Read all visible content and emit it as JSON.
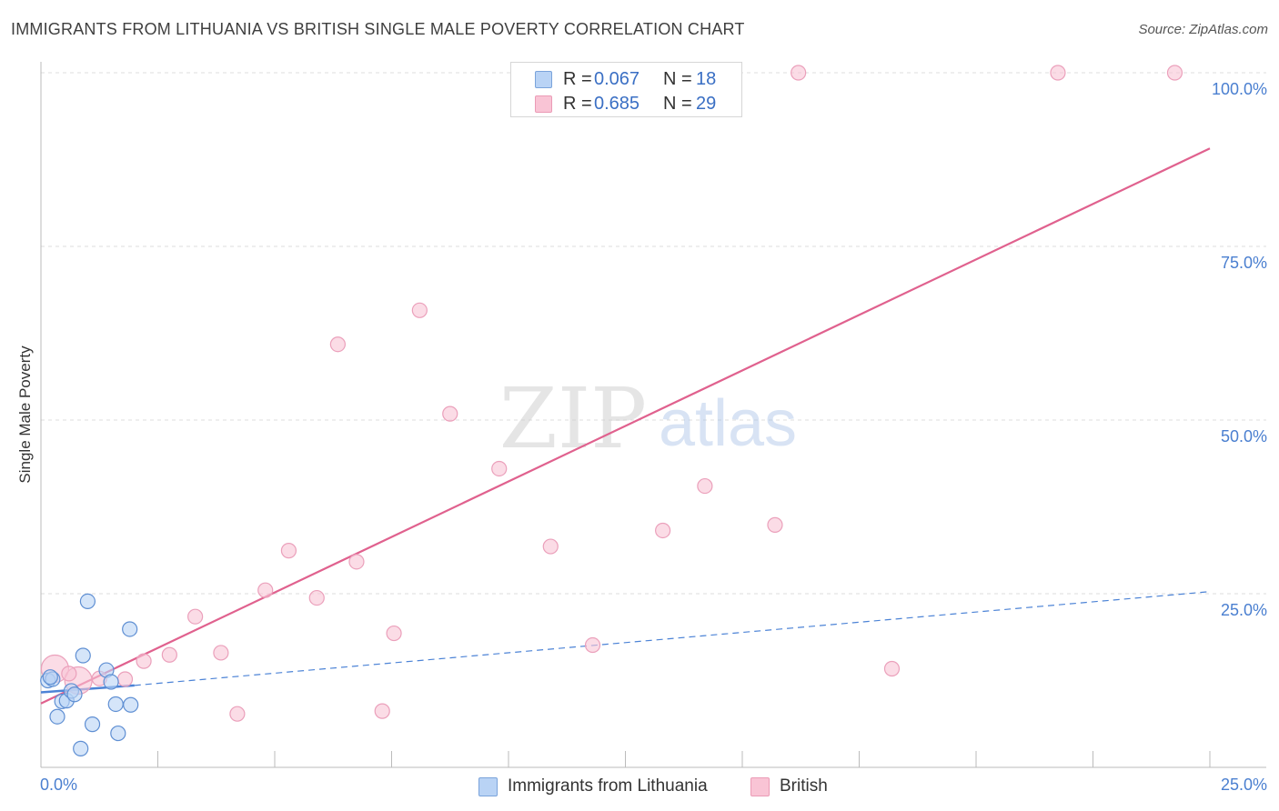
{
  "title": "IMMIGRANTS FROM LITHUANIA VS BRITISH SINGLE MALE POVERTY CORRELATION CHART",
  "source": "Source: ZipAtlas.com",
  "watermark": {
    "zip": "ZIP",
    "atlas": "atlas"
  },
  "colors": {
    "blue": "#4c83d6",
    "blue_fill": "#b9d3f5",
    "pink": "#e0618e",
    "pink_fill": "#f9c4d5",
    "tick_text": "#4a7fd0",
    "grid": "#dddddd"
  },
  "stats_legend": [
    {
      "series": "lithuania",
      "r_label": "R =",
      "r_value": "0.067",
      "n_label": "N =",
      "n_value": "18"
    },
    {
      "series": "british",
      "r_label": "R =",
      "r_value": "0.685",
      "n_label": "N =",
      "n_value": "29"
    }
  ],
  "chart_data": {
    "type": "scatter",
    "title": "IMMIGRANTS FROM LITHUANIA VS BRITISH SINGLE MALE POVERTY CORRELATION CHART",
    "xlabel": "",
    "ylabel": "Single Male Poverty",
    "xlim": [
      0,
      25
    ],
    "ylim": [
      0,
      100
    ],
    "x_tick_labels": [
      "0.0%",
      "25.0%"
    ],
    "y_ticks": [
      25,
      50,
      75,
      100
    ],
    "y_tick_labels": [
      "25.0%",
      "50.0%",
      "75.0%",
      "100.0%"
    ],
    "grid": true,
    "legend_position": "top-center",
    "series": [
      {
        "name": "Immigrants from Lithuania",
        "key": "lithuania",
        "points": [
          {
            "x": 0.15,
            "y": 12.5
          },
          {
            "x": 0.25,
            "y": 12.7
          },
          {
            "x": 0.35,
            "y": 7.3
          },
          {
            "x": 0.45,
            "y": 9.5
          },
          {
            "x": 0.55,
            "y": 9.6
          },
          {
            "x": 0.65,
            "y": 11.0
          },
          {
            "x": 0.72,
            "y": 10.5
          },
          {
            "x": 0.85,
            "y": 2.7
          },
          {
            "x": 0.9,
            "y": 16.1
          },
          {
            "x": 1.0,
            "y": 23.9
          },
          {
            "x": 1.1,
            "y": 6.2
          },
          {
            "x": 1.4,
            "y": 14.0
          },
          {
            "x": 1.5,
            "y": 12.3
          },
          {
            "x": 1.6,
            "y": 9.1
          },
          {
            "x": 1.65,
            "y": 4.9
          },
          {
            "x": 1.9,
            "y": 19.9
          },
          {
            "x": 1.92,
            "y": 9.0
          },
          {
            "x": 0.2,
            "y": 13.0
          }
        ],
        "trend_solid": {
          "x0": 0.0,
          "y0": 10.8,
          "x1": 2.0,
          "y1": 11.8
        },
        "trend_dashed": {
          "x0": 2.0,
          "y0": 11.8,
          "x1": 25.0,
          "y1": 25.3
        }
      },
      {
        "name": "British",
        "key": "british",
        "points": [
          {
            "x": 0.3,
            "y": 14.2,
            "big": true
          },
          {
            "x": 0.8,
            "y": 12.5,
            "big": true
          },
          {
            "x": 1.8,
            "y": 12.7
          },
          {
            "x": 2.2,
            "y": 15.3
          },
          {
            "x": 2.75,
            "y": 16.2
          },
          {
            "x": 3.3,
            "y": 21.7
          },
          {
            "x": 3.85,
            "y": 16.5
          },
          {
            "x": 4.2,
            "y": 7.7
          },
          {
            "x": 4.8,
            "y": 25.5
          },
          {
            "x": 5.3,
            "y": 31.2
          },
          {
            "x": 5.9,
            "y": 24.4
          },
          {
            "x": 6.35,
            "y": 60.9
          },
          {
            "x": 6.75,
            "y": 29.6
          },
          {
            "x": 7.3,
            "y": 8.1
          },
          {
            "x": 7.55,
            "y": 19.3
          },
          {
            "x": 8.1,
            "y": 65.8
          },
          {
            "x": 8.75,
            "y": 50.9
          },
          {
            "x": 9.8,
            "y": 43.0
          },
          {
            "x": 10.9,
            "y": 31.8
          },
          {
            "x": 11.8,
            "y": 17.6
          },
          {
            "x": 13.3,
            "y": 34.1
          },
          {
            "x": 14.2,
            "y": 40.5
          },
          {
            "x": 15.7,
            "y": 34.9
          },
          {
            "x": 16.2,
            "y": 100.0
          },
          {
            "x": 18.2,
            "y": 14.2
          },
          {
            "x": 21.75,
            "y": 100.0
          },
          {
            "x": 24.25,
            "y": 100.0
          },
          {
            "x": 1.25,
            "y": 12.8
          },
          {
            "x": 0.6,
            "y": 13.5
          }
        ],
        "trend": {
          "x0": 0.0,
          "y0": 9.2,
          "x1": 25.0,
          "y1": 89.1
        }
      }
    ]
  },
  "legend": {
    "items": [
      {
        "key": "lithuania",
        "label": "Immigrants from Lithuania"
      },
      {
        "key": "british",
        "label": "British"
      }
    ]
  }
}
